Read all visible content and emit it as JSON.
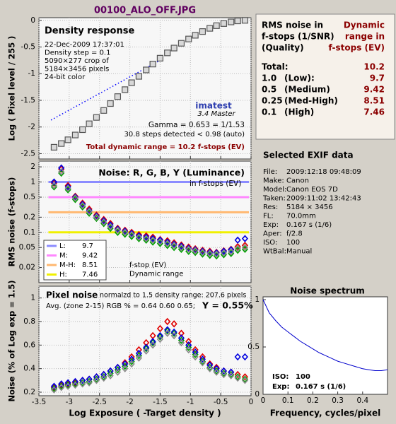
{
  "title": "00100_ALO_OFF.JPG",
  "chart_data": [
    {
      "type": "scatter",
      "title": "Density response",
      "notes": [
        "22-Dec-2009 17:37:01",
        "Density step = 0.1",
        "5090×277 crop of",
        "5184×3456 pixels",
        "24-bit color"
      ],
      "logo": "imatest",
      "version": "3.4 Master",
      "gamma_text": "Gamma = 0.653 = 1/1.53",
      "steps_text": "30.8 steps detected < 0.98 (auto)",
      "dynamic_range_text": "Total dynamic range = 10.2 f-stops (EV)",
      "ylabel": "Log ( Pixel level / 255 )",
      "xlim": [
        -3.5,
        0
      ],
      "ylim": [
        -2.6,
        0.05
      ],
      "yticks": [
        0,
        -0.5,
        -1,
        -1.5,
        -2,
        -2.5
      ],
      "grid": true,
      "x": [
        -3.25,
        -3.13,
        -3.02,
        -2.9,
        -2.78,
        -2.67,
        -2.55,
        -2.43,
        -2.32,
        -2.2,
        -2.08,
        -1.97,
        -1.85,
        -1.73,
        -1.62,
        -1.5,
        -1.38,
        -1.27,
        -1.15,
        -1.03,
        -0.92,
        -0.8,
        -0.68,
        -0.57,
        -0.45,
        -0.33,
        -0.22,
        -0.1
      ],
      "series": [
        {
          "color": "#555555",
          "marker": "square",
          "values": [
            -2.38,
            -2.31,
            -2.24,
            -2.15,
            -2.05,
            -1.94,
            -1.82,
            -1.69,
            -1.56,
            -1.43,
            -1.3,
            -1.17,
            -1.05,
            -0.93,
            -0.82,
            -0.71,
            -0.61,
            -0.52,
            -0.43,
            -0.35,
            -0.28,
            -0.21,
            -0.15,
            -0.1,
            -0.06,
            -0.03,
            -0.01,
            0
          ]
        }
      ],
      "fit": {
        "color": "#0000ff",
        "x": [
          -3.3,
          -1.5
        ],
        "values": [
          -1.87,
          -0.75
        ]
      }
    },
    {
      "type": "scatter",
      "title": "Noise: R, G, B, Y (Luminance)",
      "subtitle": "in f-stops (EV)",
      "ylabel": "RMS noise (f-stops)",
      "log_scale": true,
      "grid": true,
      "xlim": [
        -3.5,
        0
      ],
      "ylim": [
        0.01,
        2.6
      ],
      "yticks": [
        2,
        1,
        0.5,
        0.2,
        0.1,
        0.05,
        0.02
      ],
      "legend_notes": [
        "f-stop (EV)",
        "Dynamic range"
      ],
      "noise_levels": [
        {
          "name": "L:",
          "color": "#8c8cff",
          "level": 1,
          "dynamic_range": 9.7
        },
        {
          "name": "M:",
          "color": "#ff88ff",
          "level": 0.5,
          "dynamic_range": 9.42
        },
        {
          "name": "M-H:",
          "color": "#ffb870",
          "level": 0.25,
          "dynamic_range": 8.51
        },
        {
          "name": "H:",
          "color": "#f0f000",
          "level": 0.1,
          "dynamic_range": 7.46
        }
      ],
      "x": [
        -3.25,
        -3.13,
        -3.02,
        -2.9,
        -2.78,
        -2.67,
        -2.55,
        -2.43,
        -2.32,
        -2.2,
        -2.08,
        -1.97,
        -1.85,
        -1.73,
        -1.62,
        -1.5,
        -1.38,
        -1.27,
        -1.15,
        -1.03,
        -0.92,
        -0.8,
        -0.68,
        -0.57,
        -0.45,
        -0.33,
        -0.22,
        -0.1
      ],
      "series": [
        {
          "color": "#e00000",
          "marker": "diamond",
          "values": [
            0.95,
            1.8,
            0.85,
            0.52,
            0.38,
            0.29,
            0.22,
            0.18,
            0.15,
            0.12,
            0.11,
            0.1,
            0.09,
            0.085,
            0.08,
            0.072,
            0.068,
            0.062,
            0.056,
            0.051,
            0.047,
            0.044,
            0.042,
            0.04,
            0.043,
            0.046,
            0.052,
            0.055
          ]
        },
        {
          "color": "#00a000",
          "marker": "diamond",
          "values": [
            0.8,
            1.5,
            0.7,
            0.45,
            0.32,
            0.24,
            0.19,
            0.15,
            0.12,
            0.1,
            0.092,
            0.083,
            0.075,
            0.07,
            0.064,
            0.06,
            0.055,
            0.05,
            0.046,
            0.042,
            0.04,
            0.037,
            0.035,
            0.034,
            0.036,
            0.038,
            0.044,
            0.046
          ]
        },
        {
          "color": "#0000e0",
          "marker": "diamond",
          "values": [
            1.0,
            1.9,
            0.8,
            0.5,
            0.36,
            0.27,
            0.21,
            0.17,
            0.14,
            0.115,
            0.105,
            0.095,
            0.085,
            0.08,
            0.075,
            0.07,
            0.064,
            0.058,
            0.053,
            0.048,
            0.045,
            0.042,
            0.04,
            0.039,
            0.042,
            0.045,
            0.07,
            0.075
          ]
        },
        {
          "color": "#888888",
          "marker": "diamond",
          "values": [
            0.85,
            1.6,
            0.75,
            0.48,
            0.34,
            0.26,
            0.2,
            0.16,
            0.13,
            0.11,
            0.1,
            0.09,
            0.08,
            0.075,
            0.07,
            0.065,
            0.06,
            0.055,
            0.05,
            0.046,
            0.043,
            0.04,
            0.038,
            0.037,
            0.039,
            0.041,
            0.048,
            0.05
          ]
        }
      ]
    },
    {
      "type": "scatter",
      "title": "Pixel noise",
      "subtitle": "normalzd to 1.5 density range: 207.6 pixels",
      "avg_text": "Avg. (zone 2-15) RGB % = 0.64  0.60  0.65;",
      "y_text": "Y = 0.55%",
      "ylabel": "Noise (% of Log exp = 1.5)",
      "xlabel": "Log Exposure ( -Target density )",
      "grid": true,
      "xlim": [
        -3.5,
        0
      ],
      "xticks": [
        -3.5,
        -3,
        -2.5,
        -2,
        -1.5,
        -1,
        -0.5,
        0
      ],
      "ylim": [
        0.17,
        1.1
      ],
      "yticks": [
        1,
        0.8,
        0.6,
        0.4,
        0.2
      ],
      "x": [
        -3.25,
        -3.13,
        -3.02,
        -2.9,
        -2.78,
        -2.67,
        -2.55,
        -2.43,
        -2.32,
        -2.2,
        -2.08,
        -1.97,
        -1.85,
        -1.73,
        -1.62,
        -1.5,
        -1.38,
        -1.27,
        -1.15,
        -1.03,
        -0.92,
        -0.8,
        -0.68,
        -0.57,
        -0.45,
        -0.33,
        -0.22,
        -0.1
      ],
      "series": [
        {
          "color": "#e00000",
          "marker": "diamond",
          "values": [
            0.24,
            0.26,
            0.27,
            0.28,
            0.3,
            0.31,
            0.33,
            0.35,
            0.38,
            0.41,
            0.45,
            0.5,
            0.56,
            0.62,
            0.68,
            0.74,
            0.8,
            0.78,
            0.7,
            0.63,
            0.56,
            0.5,
            0.44,
            0.41,
            0.38,
            0.37,
            0.35,
            0.33
          ]
        },
        {
          "color": "#00a000",
          "marker": "diamond",
          "values": [
            0.23,
            0.25,
            0.26,
            0.27,
            0.28,
            0.29,
            0.31,
            0.33,
            0.36,
            0.39,
            0.42,
            0.46,
            0.51,
            0.57,
            0.62,
            0.67,
            0.72,
            0.7,
            0.64,
            0.58,
            0.52,
            0.46,
            0.41,
            0.38,
            0.36,
            0.35,
            0.33,
            0.31
          ]
        },
        {
          "color": "#0000e0",
          "marker": "diamond",
          "values": [
            0.25,
            0.27,
            0.28,
            0.29,
            0.3,
            0.31,
            0.33,
            0.35,
            0.38,
            0.41,
            0.44,
            0.48,
            0.53,
            0.58,
            0.63,
            0.68,
            0.73,
            0.71,
            0.66,
            0.6,
            0.54,
            0.48,
            0.43,
            0.4,
            0.38,
            0.37,
            0.5,
            0.5
          ]
        },
        {
          "color": "#888888",
          "marker": "diamond",
          "values": [
            0.22,
            0.24,
            0.25,
            0.26,
            0.27,
            0.28,
            0.3,
            0.32,
            0.34,
            0.37,
            0.4,
            0.44,
            0.49,
            0.55,
            0.6,
            0.65,
            0.7,
            0.68,
            0.62,
            0.56,
            0.5,
            0.45,
            0.4,
            0.37,
            0.35,
            0.34,
            0.32,
            0.3
          ]
        }
      ]
    },
    {
      "type": "line",
      "title": "Noise spectrum",
      "xlabel": "Frequency, cycles/pixel",
      "notes": [
        [
          "ISO:",
          "100"
        ],
        [
          "Exp:",
          "0.167 s  (1/6)"
        ]
      ],
      "xlim": [
        0,
        0.5
      ],
      "xticks": [
        0,
        0.1,
        0.2,
        0.3,
        0.4
      ],
      "ylim": [
        0,
        1.03
      ],
      "yticks": [
        1,
        0.5,
        0
      ],
      "x": [
        0,
        0.025,
        0.05,
        0.075,
        0.1,
        0.125,
        0.15,
        0.175,
        0.2,
        0.225,
        0.25,
        0.275,
        0.3,
        0.325,
        0.35,
        0.375,
        0.4,
        0.425,
        0.45,
        0.475,
        0.5
      ],
      "series": [
        {
          "color": "#0000cc",
          "values": [
            1.0,
            0.86,
            0.78,
            0.71,
            0.66,
            0.61,
            0.56,
            0.52,
            0.48,
            0.44,
            0.41,
            0.38,
            0.35,
            0.33,
            0.31,
            0.29,
            0.27,
            0.26,
            0.25,
            0.25,
            0.26
          ]
        }
      ]
    }
  ],
  "summary_table": {
    "header_left": [
      "RMS noise in",
      "f-stops (1/SNR)",
      "(Quality)"
    ],
    "header_right": [
      "Dynamic",
      "range in",
      "f-stops (EV)"
    ],
    "rows": [
      {
        "label": "Total:",
        "value": 10.2
      },
      {
        "label": "1.0",
        "quality": "(Low):",
        "value": 9.7
      },
      {
        "label": "0.5",
        "quality": "(Medium)",
        "value": 9.42
      },
      {
        "label": "0.25",
        "quality": "(Med-High)",
        "value": 8.51
      },
      {
        "label": "0.1",
        "quality": "(High)",
        "value": 7.46
      }
    ]
  },
  "exif": {
    "title": "Selected EXIF data",
    "rows": [
      [
        "File:",
        "2009:12:18 09:48:09"
      ],
      [
        "Make:",
        "Canon"
      ],
      [
        "Model:",
        "Canon EOS 7D"
      ],
      [
        "Taken:",
        "2009:11:02 13:42:43"
      ],
      [
        "Res:",
        "5184 × 3456"
      ],
      [
        "FL:",
        "70.0mm"
      ],
      [
        "Exp:",
        "0.167 s  (1/6)"
      ],
      [
        "Aper:",
        "f/2.8"
      ],
      [
        "ISO:",
        "100"
      ],
      [
        "WtBal:",
        "Manual"
      ]
    ]
  }
}
